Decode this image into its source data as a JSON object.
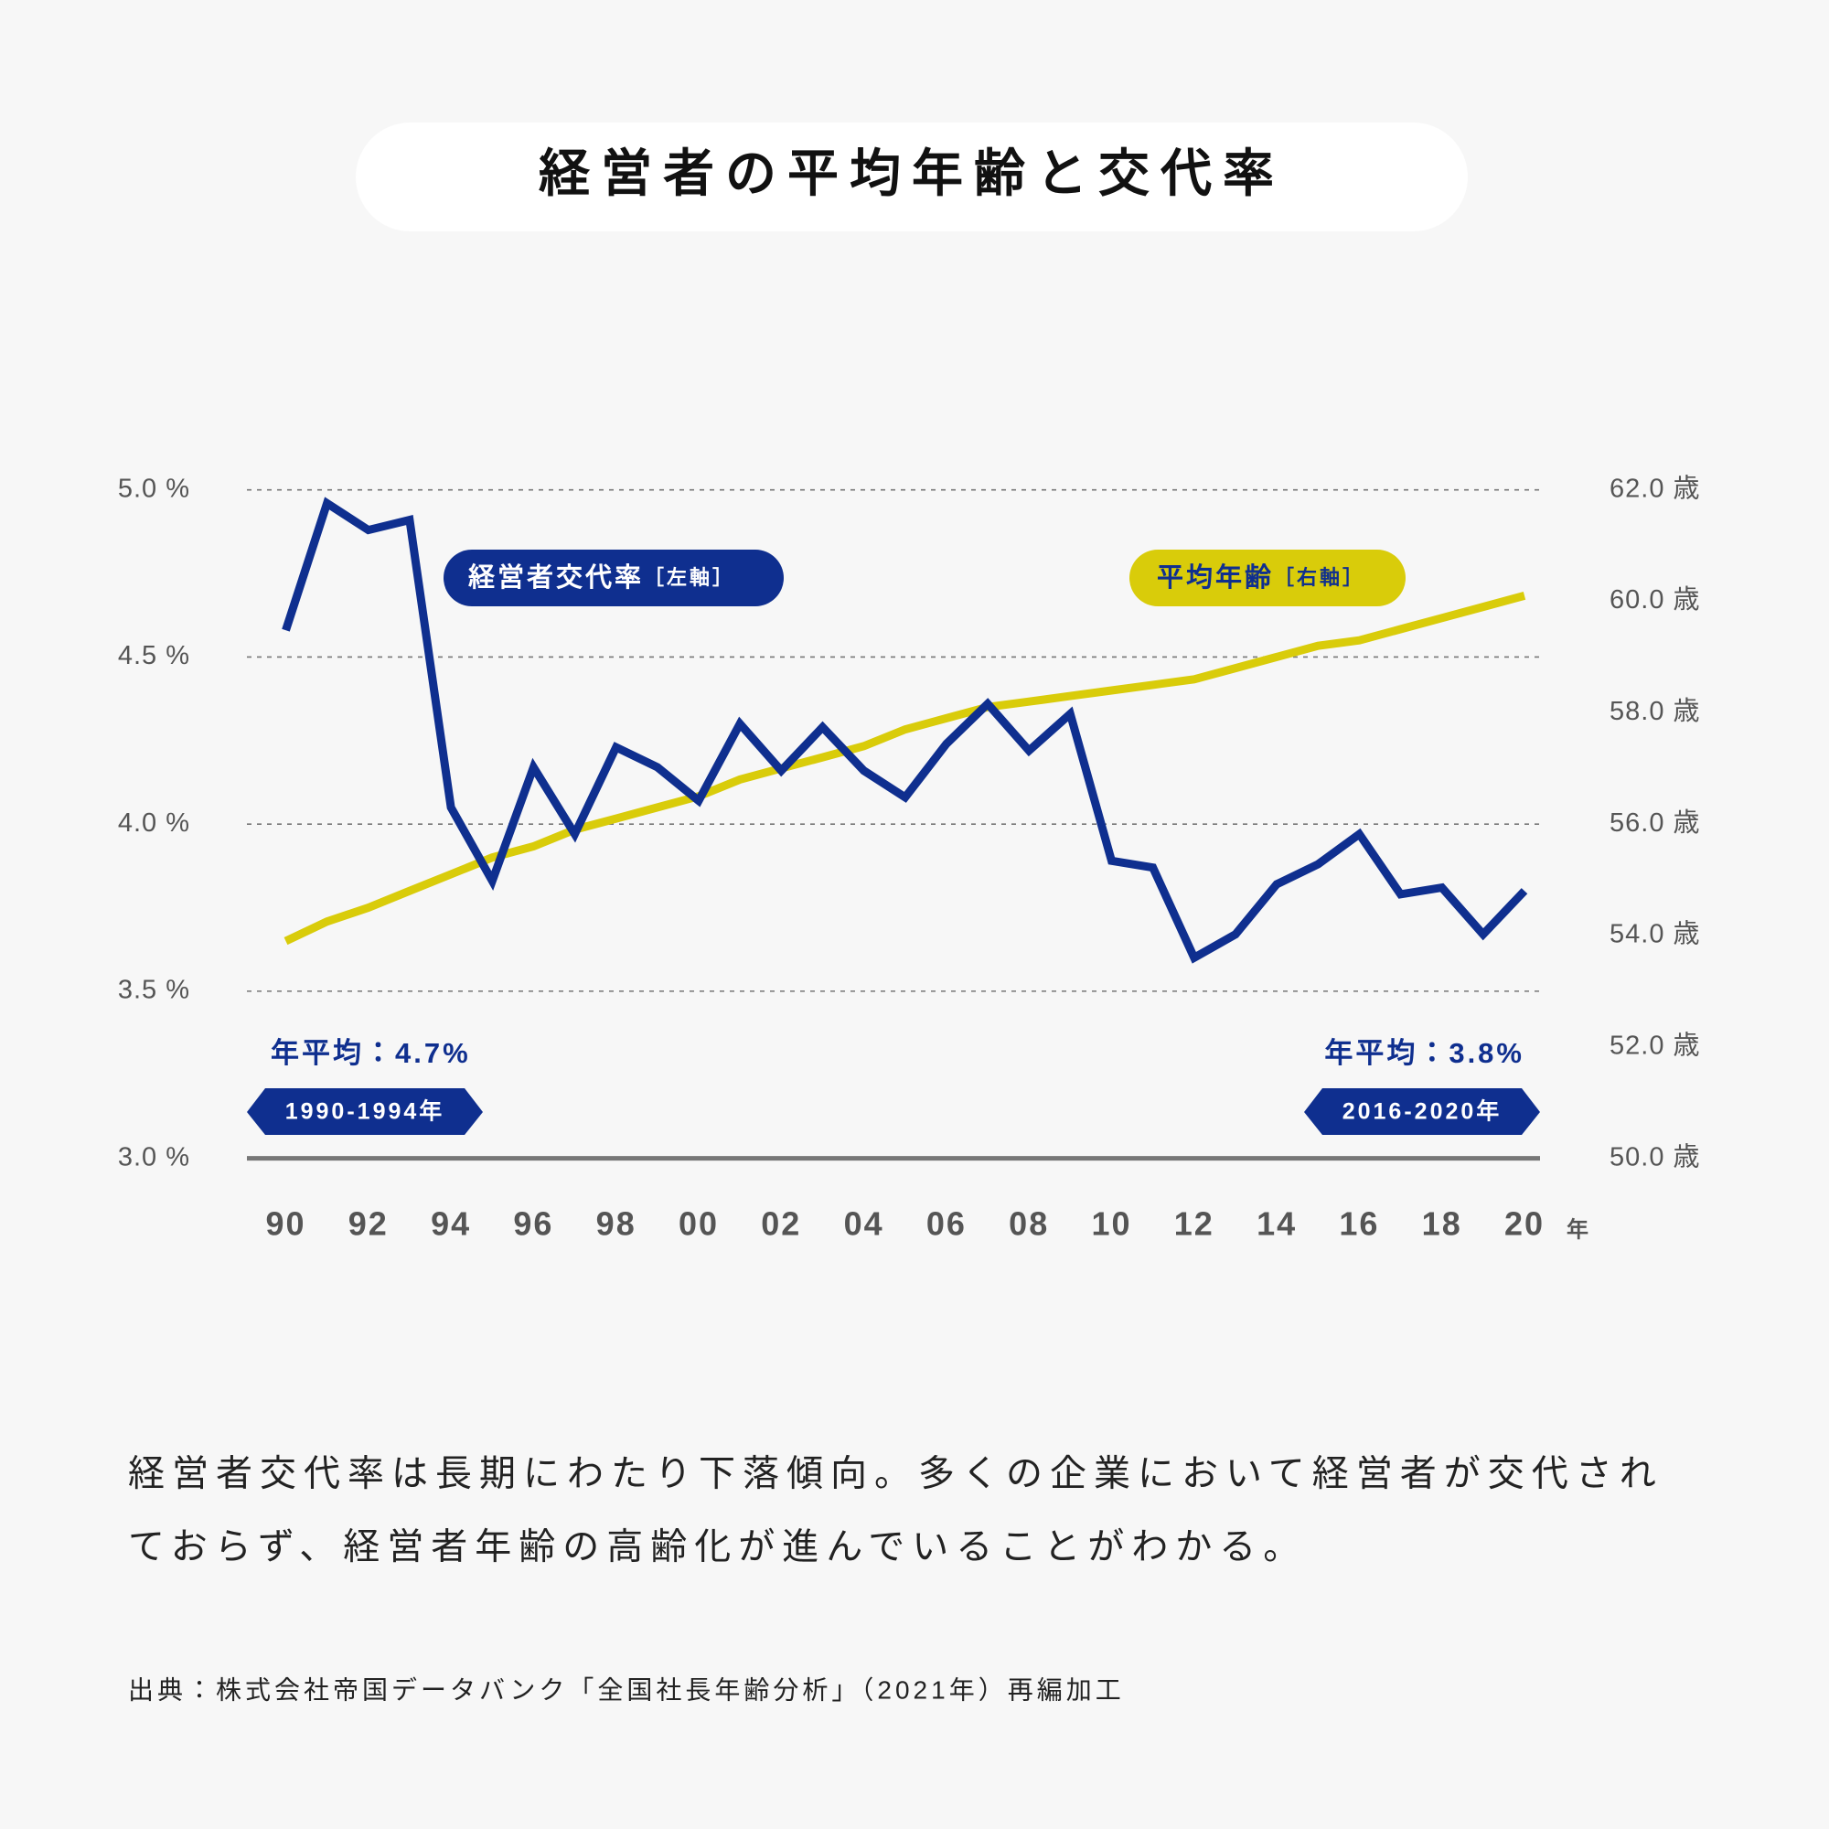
{
  "chart_data": {
    "type": "line",
    "title": "経営者の平均年齢と交代率",
    "categories": [
      "90",
      null,
      "92",
      null,
      "94",
      null,
      "96",
      null,
      "98",
      null,
      "00",
      null,
      "02",
      null,
      "04",
      null,
      "06",
      null,
      "08",
      null,
      "10",
      null,
      "12",
      null,
      "14",
      null,
      "16",
      null,
      "18",
      null,
      "20"
    ],
    "xlabel": "年",
    "series": [
      {
        "name": "経営者交代率",
        "axis_note": "［左軸］",
        "color": "#0f2f8f",
        "axis": "y",
        "values": [
          4.58,
          4.96,
          4.88,
          4.91,
          4.05,
          3.83,
          4.17,
          3.97,
          4.23,
          4.17,
          4.07,
          4.3,
          4.16,
          4.29,
          4.16,
          4.08,
          4.24,
          4.36,
          4.22,
          4.33,
          3.89,
          3.87,
          3.6,
          3.67,
          3.82,
          3.88,
          3.97,
          3.79,
          3.81,
          3.67,
          3.8
        ]
      },
      {
        "name": "平均年齢",
        "axis_note": "［右軸］",
        "color": "#d9cc0a",
        "axis": "y2",
        "values": [
          53.9,
          54.25,
          54.5,
          54.8,
          55.1,
          55.4,
          55.6,
          55.9,
          56.1,
          56.3,
          56.5,
          56.8,
          57.0,
          57.2,
          57.4,
          57.7,
          57.9,
          58.1,
          58.2,
          58.3,
          58.4,
          58.5,
          58.6,
          58.8,
          59.0,
          59.2,
          59.3,
          59.5,
          59.7,
          59.9,
          60.1
        ]
      }
    ],
    "ylim": [
      3.0,
      5.0
    ],
    "yticks": [
      {
        "value": 3.0,
        "label": "3.0 %"
      },
      {
        "value": 3.5,
        "label": "3.5 %"
      },
      {
        "value": 4.0,
        "label": "4.0 %"
      },
      {
        "value": 4.5,
        "label": "4.5 %"
      },
      {
        "value": 5.0,
        "label": "5.0 %"
      }
    ],
    "y2lim": [
      50,
      62
    ],
    "y2ticks": [
      {
        "value": 50,
        "label": "50.0 歳"
      },
      {
        "value": 52,
        "label": "52.0 歳"
      },
      {
        "value": 54,
        "label": "54.0 歳"
      },
      {
        "value": 56,
        "label": "56.0 歳"
      },
      {
        "value": 58,
        "label": "58.0 歳"
      },
      {
        "value": 60,
        "label": "60.0 歳"
      },
      {
        "value": 62,
        "label": "62.0 歳"
      }
    ],
    "grid": true,
    "annotations": [
      {
        "text": "年平均：4.7%",
        "period": "1990-1994年"
      },
      {
        "text": "年平均：3.8%",
        "period": "2016-2020年"
      }
    ],
    "description": [
      "経営者交代率は長期にわたり下落傾向。多くの企業において経営者が交代され",
      "ておらず、経営者年齢の高齢化が進んでいることがわかる。"
    ],
    "source": "出典：株式会社帝国データバンク「全国社長年齢分析」（2021年）再編加工"
  }
}
